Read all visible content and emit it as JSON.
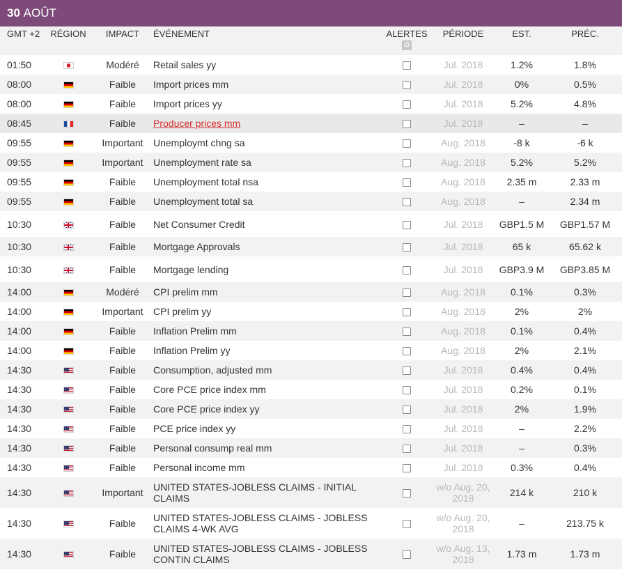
{
  "header": {
    "day_number": "30",
    "month": "AOÛT"
  },
  "columns": {
    "time": "GMT +2",
    "region": "RÉGION",
    "impact": "IMPACT",
    "event": "ÉVÉNEMENT",
    "alerts": "ALERTES",
    "alerts_icon": "gear-icon",
    "period": "PÉRIODE",
    "est": "EST.",
    "prec": "PRÉC."
  },
  "colors": {
    "header_bg": "#7e4a79",
    "link": "#d42b2b",
    "period_text": "#b8b8b8"
  },
  "events": [
    {
      "time": "01:50",
      "region": "jp",
      "impact": "Modéré",
      "event": "Retail sales yy",
      "period": "Jul. 2018",
      "est": "1.2%",
      "prec": "1.8%"
    },
    {
      "time": "08:00",
      "region": "de",
      "impact": "Faible",
      "event": "Import prices mm",
      "period": "Jul. 2018",
      "est": "0%",
      "prec": "0.5%"
    },
    {
      "time": "08:00",
      "region": "de",
      "impact": "Faible",
      "event": "Import prices yy",
      "period": "Jul. 2018",
      "est": "5.2%",
      "prec": "4.8%"
    },
    {
      "time": "08:45",
      "region": "fr",
      "impact": "Faible",
      "event": "Producer prices mm",
      "period": "Jul. 2018",
      "est": "–",
      "prec": "–",
      "highlighted": true,
      "link": true
    },
    {
      "time": "09:55",
      "region": "de",
      "impact": "Important",
      "event": "Unemploymt chng sa",
      "period": "Aug. 2018",
      "est": "-8 k",
      "prec": "-6 k"
    },
    {
      "time": "09:55",
      "region": "de",
      "impact": "Important",
      "event": "Unemployment rate sa",
      "period": "Aug. 2018",
      "est": "5.2%",
      "prec": "5.2%"
    },
    {
      "time": "09:55",
      "region": "de",
      "impact": "Faible",
      "event": "Unemployment total nsa",
      "period": "Aug. 2018",
      "est": "2.35 m",
      "prec": "2.33 m"
    },
    {
      "time": "09:55",
      "region": "de",
      "impact": "Faible",
      "event": "Unemployment total sa",
      "period": "Aug. 2018",
      "est": "–",
      "prec": "2.34 m"
    },
    {
      "time": "10:30",
      "region": "gb",
      "impact": "Faible",
      "event": "Net Consumer Credit",
      "period": "Jul. 2018",
      "est": "GBP1.5 M",
      "prec": "GBP1.57 M",
      "tall": true
    },
    {
      "time": "10:30",
      "region": "gb",
      "impact": "Faible",
      "event": "Mortgage Approvals",
      "period": "Jul. 2018",
      "est": "65 k",
      "prec": "65.62 k"
    },
    {
      "time": "10:30",
      "region": "gb",
      "impact": "Faible",
      "event": "Mortgage lending",
      "period": "Jul. 2018",
      "est": "GBP3.9 M",
      "prec": "GBP3.85 M",
      "tall": true
    },
    {
      "time": "14:00",
      "region": "de",
      "impact": "Modéré",
      "event": "CPI prelim mm",
      "period": "Aug. 2018",
      "est": "0.1%",
      "prec": "0.3%"
    },
    {
      "time": "14:00",
      "region": "de",
      "impact": "Important",
      "event": "CPI prelim yy",
      "period": "Aug. 2018",
      "est": "2%",
      "prec": "2%"
    },
    {
      "time": "14:00",
      "region": "de",
      "impact": "Faible",
      "event": "Inflation Prelim mm",
      "period": "Aug. 2018",
      "est": "0.1%",
      "prec": "0.4%"
    },
    {
      "time": "14:00",
      "region": "de",
      "impact": "Faible",
      "event": "Inflation Prelim yy",
      "period": "Aug. 2018",
      "est": "2%",
      "prec": "2.1%"
    },
    {
      "time": "14:30",
      "region": "us",
      "impact": "Faible",
      "event": "Consumption, adjusted mm",
      "period": "Jul. 2018",
      "est": "0.4%",
      "prec": "0.4%"
    },
    {
      "time": "14:30",
      "region": "us",
      "impact": "Faible",
      "event": "Core PCE price index mm",
      "period": "Jul. 2018",
      "est": "0.2%",
      "prec": "0.1%"
    },
    {
      "time": "14:30",
      "region": "us",
      "impact": "Faible",
      "event": "Core PCE price index yy",
      "period": "Jul. 2018",
      "est": "2%",
      "prec": "1.9%"
    },
    {
      "time": "14:30",
      "region": "us",
      "impact": "Faible",
      "event": "PCE price index yy",
      "period": "Jul. 2018",
      "est": "–",
      "prec": "2.2%"
    },
    {
      "time": "14:30",
      "region": "us",
      "impact": "Faible",
      "event": "Personal consump real mm",
      "period": "Jul. 2018",
      "est": "–",
      "prec": "0.3%"
    },
    {
      "time": "14:30",
      "region": "us",
      "impact": "Faible",
      "event": "Personal income mm",
      "period": "Jul. 2018",
      "est": "0.3%",
      "prec": "0.4%"
    },
    {
      "time": "14:30",
      "region": "us",
      "impact": "Important",
      "event": "UNITED STATES-JOBLESS CLAIMS - INITIAL CLAIMS",
      "period": "w/o Aug. 20, 2018",
      "est": "214 k",
      "prec": "210 k",
      "tall": true
    },
    {
      "time": "14:30",
      "region": "us",
      "impact": "Faible",
      "event": "UNITED STATES-JOBLESS CLAIMS - JOBLESS CLAIMS 4-WK AVG",
      "period": "w/o Aug. 20, 2018",
      "est": "–",
      "prec": "213.75 k",
      "tall": true
    },
    {
      "time": "14:30",
      "region": "us",
      "impact": "Faible",
      "event": "UNITED STATES-JOBLESS CLAIMS - JOBLESS CONTIN CLAIMS",
      "period": "w/o Aug. 13, 2018",
      "est": "1.73 m",
      "prec": "1.73 m",
      "tall": true
    }
  ]
}
